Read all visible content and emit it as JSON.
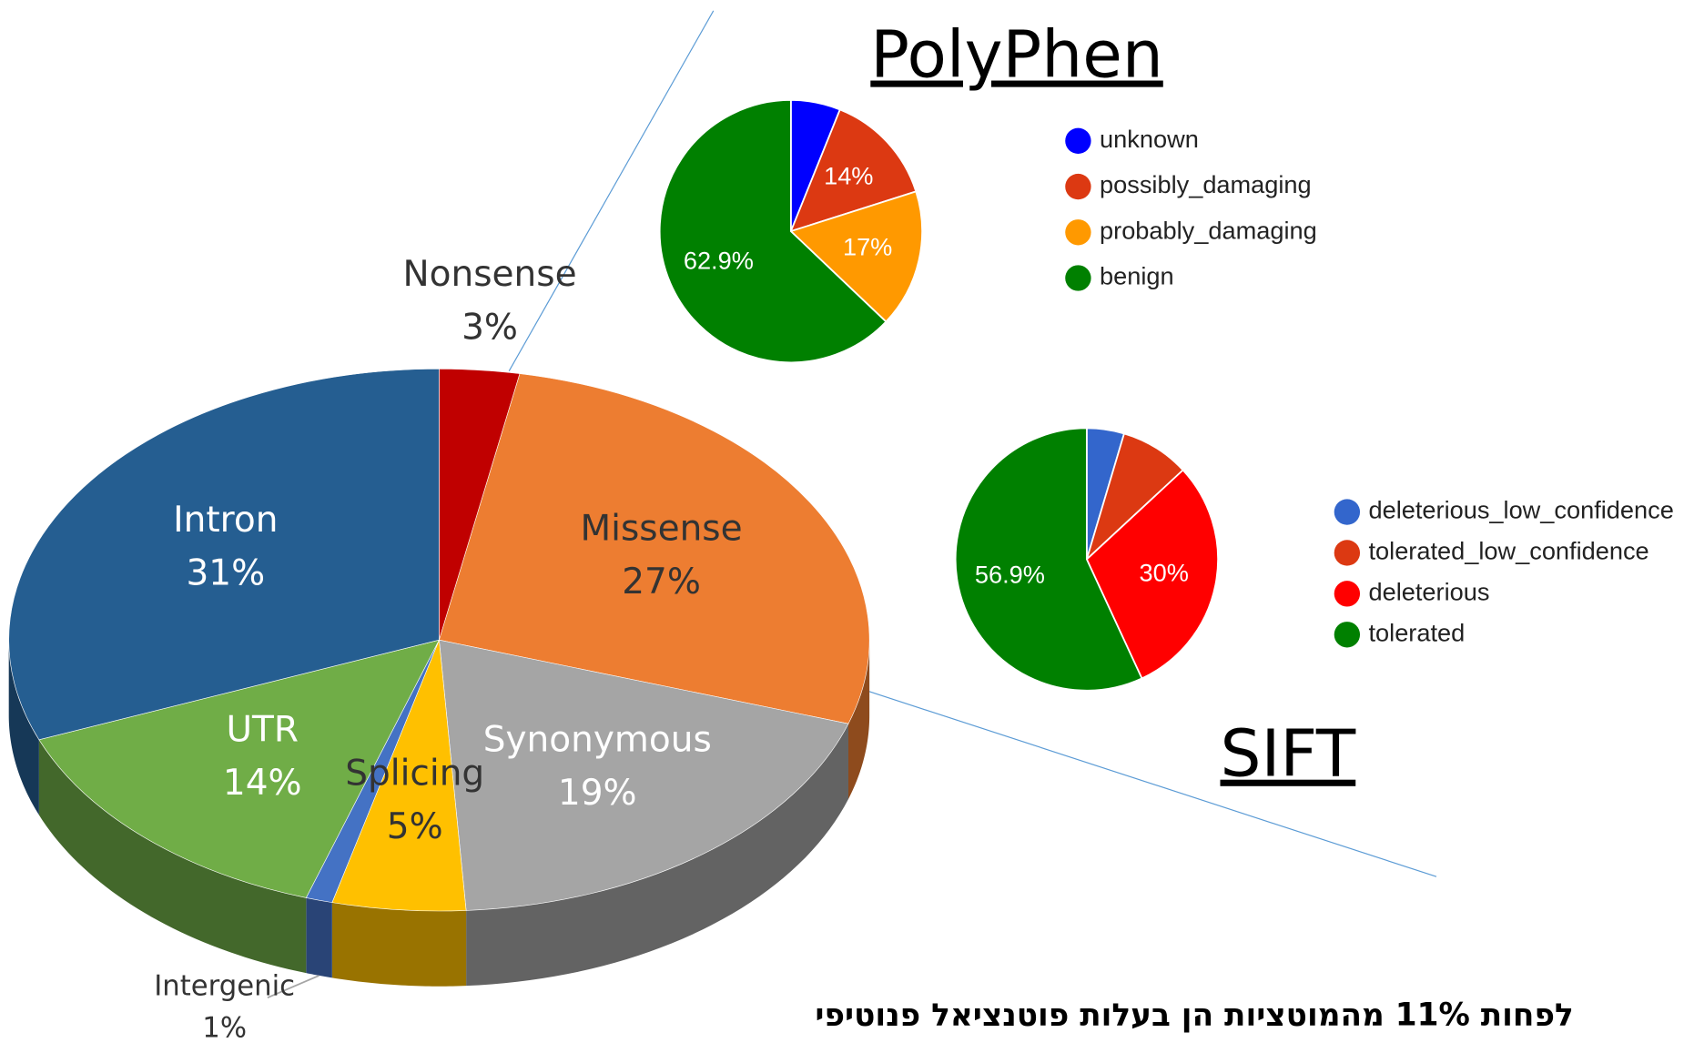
{
  "chart_data": [
    {
      "type": "pie3d",
      "categories": [
        "Nonsense",
        "Missense",
        "Synonymous",
        "Splicing",
        "Intergenic",
        "UTR",
        "Intron"
      ],
      "values": [
        3,
        27,
        19,
        5,
        1,
        14,
        31
      ],
      "value_labels": [
        "3%",
        "27%",
        "19%",
        "5%",
        "1%",
        "14%",
        "31%"
      ],
      "colors": [
        "#c00000",
        "#ed7d31",
        "#a5a5a5",
        "#ffc000",
        "#4472c4",
        "#70ad47",
        "#255e91"
      ],
      "annotations": [
        "לפחות 11% מהמוטציות הן בעלות פוטנציאל פנוטיפי"
      ]
    },
    {
      "type": "pie",
      "title": "PolyPhen",
      "categories": [
        "unknown",
        "possibly_damaging",
        "probably_damaging",
        "benign"
      ],
      "values": [
        6.1,
        14,
        17,
        62.9
      ],
      "value_labels": [
        null,
        "14%",
        "17%",
        "62.9%"
      ],
      "colors": [
        "#0000ff",
        "#dc3912",
        "#ff9900",
        "#008000"
      ]
    },
    {
      "type": "pie",
      "title": "SIFT",
      "categories": [
        "deleterious_low_confidence",
        "tolerated_low_confidence",
        "deleterious",
        "tolerated"
      ],
      "values": [
        4.6,
        8.5,
        30,
        56.9
      ],
      "value_labels": [
        null,
        null,
        "30%",
        "56.9%"
      ],
      "colors": [
        "#3366cc",
        "#dc3912",
        "#ff0000",
        "#008000"
      ]
    }
  ]
}
